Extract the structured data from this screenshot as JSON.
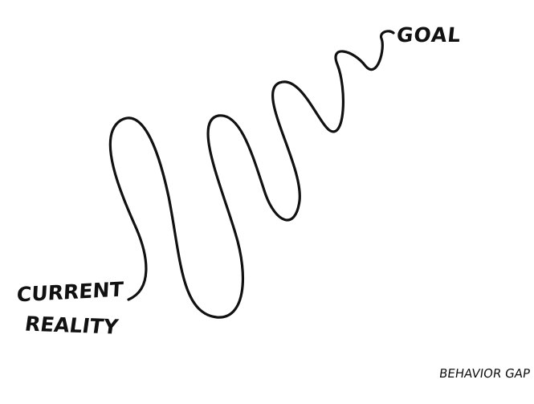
{
  "diagram": {
    "goal_label": "Goal",
    "start_label_line1": "Current",
    "start_label_line2": "Reality",
    "signature": "Behavior Gap",
    "stroke_color": "#111111",
    "background_color": "#ffffff"
  }
}
